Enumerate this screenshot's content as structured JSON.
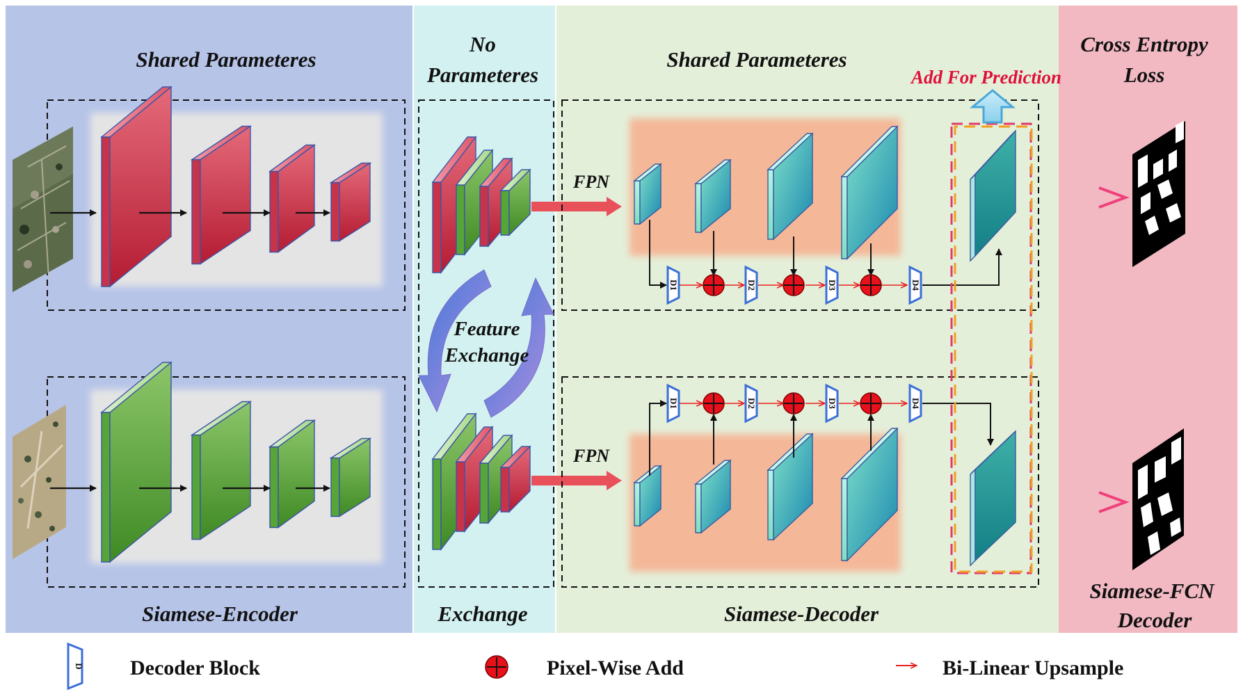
{
  "panels": {
    "encoder": {
      "top_label": "Shared Parameteres",
      "bottom_label": "Siamese-Encoder",
      "color": "#b6c4e8"
    },
    "exchange": {
      "top_label_1": "No",
      "top_label_2": "Parameteres",
      "bottom_label": "Exchange",
      "color": "#d3f1f1"
    },
    "decoder": {
      "top_label": "Shared Parameteres",
      "bottom_label": "Siamese-Decoder",
      "color": "#e4efd9"
    },
    "loss": {
      "top_label_1": "Cross Entropy",
      "top_label_2": "Loss",
      "bottom_label_1": "Siamese-FCN",
      "bottom_label_2": "Decoder",
      "color": "#f2b9c3"
    }
  },
  "labels": {
    "feature_exchange_1": "Feature",
    "feature_exchange_2": "Exchange",
    "fpn_top": "FPN",
    "fpn_bottom": "FPN",
    "add_for_prediction": "Add For Prediction"
  },
  "decoder_blocks": [
    "D1",
    "D2",
    "D3",
    "D4"
  ],
  "legend": {
    "decoder_block": "Decoder Block",
    "decoder_block_glyph": "D",
    "pixel_wise_add": "Pixel-Wise Add",
    "bilinear_upsample": "Bi-Linear Upsample"
  },
  "colors": {
    "encoder_red": "#cc3344",
    "encoder_green": "#55a033",
    "teal_top": "#7fe0c8",
    "teal_bottom": "#1a7f99",
    "add_node": "#e8101a",
    "upsample_arrow": "#e82020",
    "fpn_arrow": "#e8505a",
    "prediction_label": "#e0103a"
  }
}
